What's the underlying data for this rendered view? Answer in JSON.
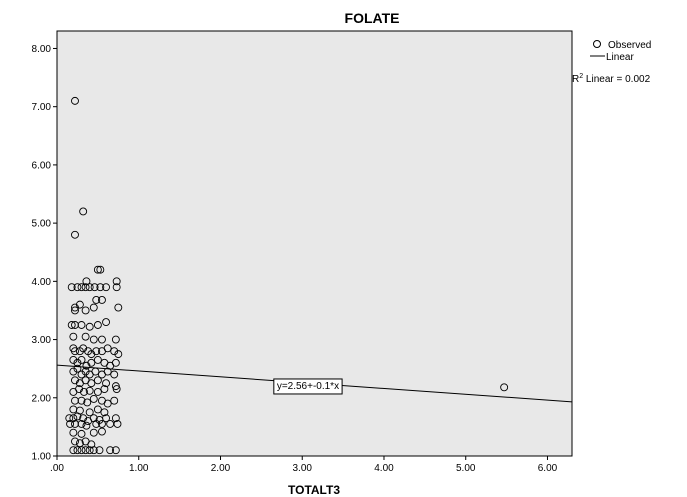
{
  "chart_data": {
    "type": "scatter",
    "title": "FOLATE",
    "xlabel": "TOTALT3",
    "ylabel": "",
    "xlim": [
      0,
      6.3
    ],
    "ylim": [
      1.0,
      8.3
    ],
    "x_ticks": [
      0,
      1,
      2,
      3,
      4,
      5,
      6
    ],
    "x_tick_labels": [
      ".00",
      "1.00",
      "2.00",
      "3.00",
      "4.00",
      "5.00",
      "6.00"
    ],
    "y_ticks": [
      1,
      2,
      3,
      4,
      5,
      6,
      7,
      8
    ],
    "y_tick_labels": [
      "1.00",
      "2.00",
      "3.00",
      "4.00",
      "5.00",
      "6.00",
      "7.00",
      "8.00"
    ],
    "grid": false,
    "background_color": "#e8e8e8",
    "legend": {
      "placement": "top-right",
      "observed_label": "Observed",
      "linear_label": "Linear",
      "r2_prefix": "R",
      "r2_sup": "2",
      "r2_text": " Linear = 0.002"
    },
    "fit_line": {
      "intercept": 2.56,
      "slope": -0.1,
      "equation_label": "y=2.56+-0.1*x",
      "label_x": 3.07,
      "label_y": 2.22
    },
    "series": [
      {
        "kind": "observed",
        "points": [
          [
            0.22,
            7.1
          ],
          [
            0.32,
            5.2
          ],
          [
            0.22,
            4.8
          ],
          [
            0.5,
            4.2
          ],
          [
            0.53,
            4.2
          ],
          [
            0.18,
            3.9
          ],
          [
            0.25,
            3.9
          ],
          [
            0.3,
            3.9
          ],
          [
            0.35,
            3.9
          ],
          [
            0.4,
            3.9
          ],
          [
            0.46,
            3.9
          ],
          [
            0.53,
            3.9
          ],
          [
            0.6,
            3.9
          ],
          [
            0.73,
            3.9
          ],
          [
            0.73,
            4.0
          ],
          [
            0.36,
            4.0
          ],
          [
            0.48,
            3.68
          ],
          [
            0.55,
            3.68
          ],
          [
            0.28,
            3.6
          ],
          [
            0.22,
            3.55
          ],
          [
            0.22,
            3.5
          ],
          [
            0.35,
            3.5
          ],
          [
            0.45,
            3.55
          ],
          [
            0.75,
            3.55
          ],
          [
            0.18,
            3.25
          ],
          [
            0.22,
            3.25
          ],
          [
            0.3,
            3.25
          ],
          [
            0.4,
            3.22
          ],
          [
            0.5,
            3.25
          ],
          [
            0.6,
            3.3
          ],
          [
            0.2,
            3.05
          ],
          [
            0.35,
            3.05
          ],
          [
            0.45,
            3.0
          ],
          [
            0.55,
            3.0
          ],
          [
            0.72,
            3.0
          ],
          [
            0.2,
            2.85
          ],
          [
            0.22,
            2.8
          ],
          [
            0.28,
            2.8
          ],
          [
            0.32,
            2.85
          ],
          [
            0.38,
            2.8
          ],
          [
            0.42,
            2.75
          ],
          [
            0.48,
            2.8
          ],
          [
            0.55,
            2.8
          ],
          [
            0.62,
            2.85
          ],
          [
            0.7,
            2.8
          ],
          [
            0.75,
            2.75
          ],
          [
            0.2,
            2.65
          ],
          [
            0.25,
            2.6
          ],
          [
            0.3,
            2.65
          ],
          [
            0.36,
            2.55
          ],
          [
            0.42,
            2.6
          ],
          [
            0.5,
            2.65
          ],
          [
            0.58,
            2.6
          ],
          [
            0.65,
            2.55
          ],
          [
            0.72,
            2.6
          ],
          [
            0.2,
            2.45
          ],
          [
            0.25,
            2.5
          ],
          [
            0.3,
            2.4
          ],
          [
            0.35,
            2.45
          ],
          [
            0.4,
            2.4
          ],
          [
            0.47,
            2.45
          ],
          [
            0.55,
            2.4
          ],
          [
            0.62,
            2.45
          ],
          [
            0.7,
            2.4
          ],
          [
            0.22,
            2.3
          ],
          [
            0.28,
            2.25
          ],
          [
            0.35,
            2.3
          ],
          [
            0.42,
            2.25
          ],
          [
            0.5,
            2.3
          ],
          [
            0.6,
            2.25
          ],
          [
            0.72,
            2.2
          ],
          [
            0.2,
            2.1
          ],
          [
            0.27,
            2.15
          ],
          [
            0.33,
            2.1
          ],
          [
            0.4,
            2.12
          ],
          [
            0.5,
            2.1
          ],
          [
            0.58,
            2.15
          ],
          [
            0.73,
            2.15
          ],
          [
            0.22,
            1.95
          ],
          [
            0.3,
            1.95
          ],
          [
            0.37,
            1.92
          ],
          [
            0.45,
            1.98
          ],
          [
            0.55,
            1.95
          ],
          [
            0.62,
            1.9
          ],
          [
            0.7,
            1.95
          ],
          [
            0.2,
            1.8
          ],
          [
            0.28,
            1.78
          ],
          [
            0.4,
            1.75
          ],
          [
            0.5,
            1.8
          ],
          [
            0.58,
            1.75
          ],
          [
            0.15,
            1.65
          ],
          [
            0.2,
            1.65
          ],
          [
            0.25,
            1.68
          ],
          [
            0.32,
            1.65
          ],
          [
            0.38,
            1.6
          ],
          [
            0.45,
            1.65
          ],
          [
            0.52,
            1.62
          ],
          [
            0.6,
            1.65
          ],
          [
            0.72,
            1.65
          ],
          [
            0.16,
            1.55
          ],
          [
            0.22,
            1.55
          ],
          [
            0.3,
            1.55
          ],
          [
            0.36,
            1.52
          ],
          [
            0.48,
            1.55
          ],
          [
            0.55,
            1.55
          ],
          [
            0.65,
            1.55
          ],
          [
            0.74,
            1.55
          ],
          [
            0.2,
            1.4
          ],
          [
            0.3,
            1.38
          ],
          [
            0.45,
            1.4
          ],
          [
            0.55,
            1.42
          ],
          [
            0.22,
            1.25
          ],
          [
            0.28,
            1.22
          ],
          [
            0.35,
            1.25
          ],
          [
            0.42,
            1.2
          ],
          [
            0.2,
            1.1
          ],
          [
            0.25,
            1.1
          ],
          [
            0.3,
            1.1
          ],
          [
            0.35,
            1.1
          ],
          [
            0.4,
            1.1
          ],
          [
            0.45,
            1.1
          ],
          [
            0.52,
            1.1
          ],
          [
            0.65,
            1.1
          ],
          [
            0.72,
            1.1
          ],
          [
            5.47,
            2.18
          ]
        ]
      }
    ]
  }
}
